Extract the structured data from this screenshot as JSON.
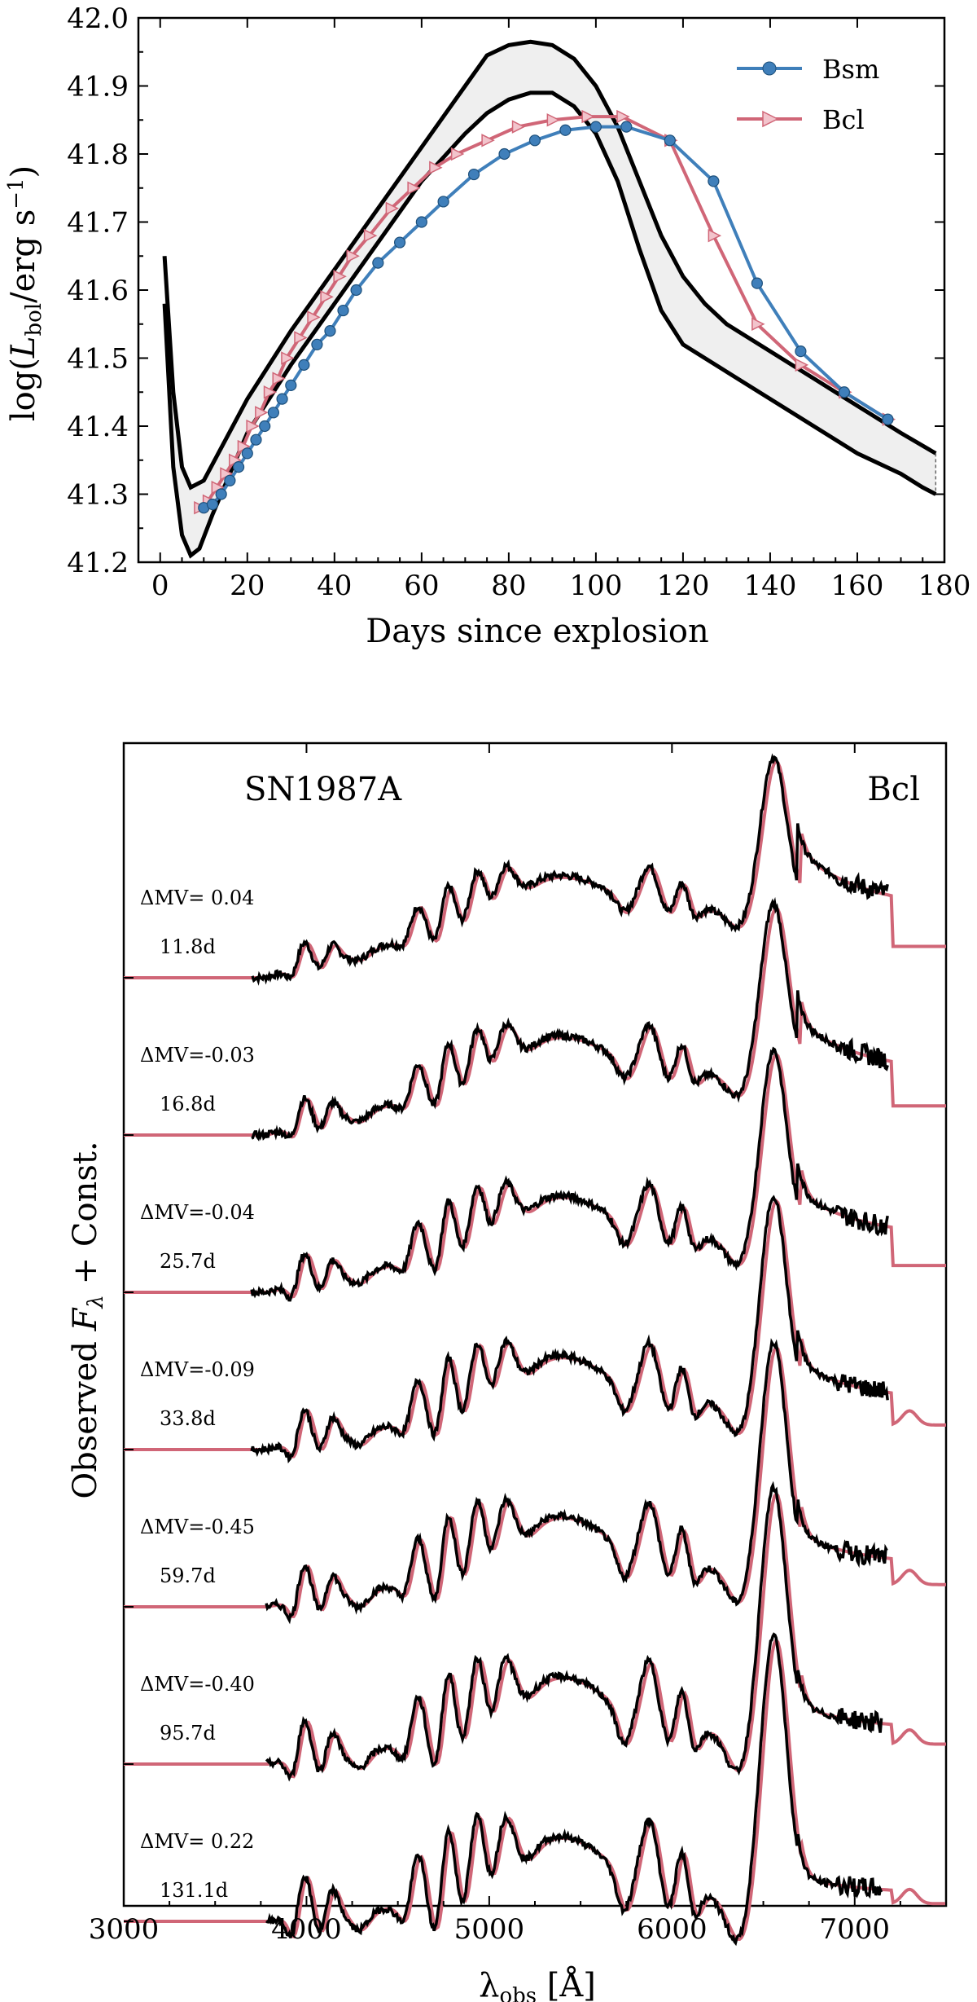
{
  "colors": {
    "bsm": "#3f7fba",
    "bcl": "#d06677",
    "band_fill": "#efefef",
    "data": "#000000"
  },
  "chart_data": [
    {
      "type": "line",
      "title": "",
      "xlabel": "Days since explosion",
      "ylabel": "log(L_bol / erg s^-1)",
      "xlim": [
        -5,
        180
      ],
      "ylim": [
        41.2,
        42.0
      ],
      "xticks": [
        "0",
        "20",
        "40",
        "60",
        "80",
        "100",
        "120",
        "140",
        "160",
        "180"
      ],
      "yticks": [
        "41.2",
        "41.3",
        "41.4",
        "41.5",
        "41.6",
        "41.7",
        "41.8",
        "41.9",
        "42.0"
      ],
      "legend_position": "top-right",
      "series": [
        {
          "name": "Bsm",
          "marker": "circle",
          "x": [
            10,
            12,
            14,
            16,
            18,
            20,
            22,
            24,
            26,
            28,
            30,
            33,
            36,
            39,
            42,
            45,
            50,
            55,
            60,
            65,
            72,
            79,
            86,
            93,
            100,
            107,
            117,
            127,
            137,
            147,
            157,
            167
          ],
          "y": [
            41.28,
            41.285,
            41.3,
            41.32,
            41.34,
            41.36,
            41.38,
            41.4,
            41.42,
            41.44,
            41.46,
            41.49,
            41.52,
            41.54,
            41.57,
            41.6,
            41.64,
            41.67,
            41.7,
            41.73,
            41.77,
            41.8,
            41.82,
            41.835,
            41.84,
            41.84,
            41.82,
            41.76,
            41.61,
            41.51,
            41.45,
            41.41
          ]
        },
        {
          "name": "Bcl",
          "marker": "triangle-right",
          "x": [
            9,
            11,
            13,
            15,
            17,
            19,
            21,
            23,
            25,
            27,
            29,
            32,
            35,
            38,
            41,
            44,
            48,
            53,
            58,
            63,
            68,
            75,
            82,
            90,
            98,
            106,
            117,
            127,
            137,
            147,
            157,
            167
          ],
          "y": [
            41.28,
            41.29,
            41.31,
            41.33,
            41.35,
            41.37,
            41.4,
            41.42,
            41.45,
            41.47,
            41.5,
            41.53,
            41.56,
            41.59,
            41.62,
            41.65,
            41.68,
            41.72,
            41.75,
            41.78,
            41.8,
            41.82,
            41.84,
            41.85,
            41.855,
            41.855,
            41.82,
            41.68,
            41.55,
            41.49,
            41.45,
            41.41
          ]
        },
        {
          "name": "SN1987A upper bound",
          "x": [
            1,
            3,
            5,
            7,
            10,
            15,
            20,
            30,
            40,
            50,
            60,
            70,
            75,
            80,
            85,
            90,
            95,
            100,
            105,
            110,
            115,
            120,
            125,
            130,
            140,
            150,
            160,
            170,
            178
          ],
          "y": [
            41.65,
            41.45,
            41.34,
            41.31,
            41.32,
            41.38,
            41.44,
            41.54,
            41.63,
            41.72,
            41.81,
            41.9,
            41.945,
            41.96,
            41.965,
            41.96,
            41.94,
            41.9,
            41.84,
            41.76,
            41.68,
            41.62,
            41.58,
            41.55,
            41.51,
            41.47,
            41.43,
            41.39,
            41.36
          ]
        },
        {
          "name": "SN1987A lower bound",
          "x": [
            1,
            3,
            5,
            7,
            9,
            12,
            16,
            20,
            30,
            40,
            50,
            60,
            70,
            75,
            80,
            85,
            90,
            95,
            100,
            105,
            110,
            115,
            120,
            125,
            130,
            140,
            150,
            160,
            170,
            175,
            178
          ],
          "y": [
            41.58,
            41.34,
            41.24,
            41.21,
            41.22,
            41.27,
            41.33,
            41.39,
            41.49,
            41.58,
            41.67,
            41.76,
            41.83,
            41.86,
            41.88,
            41.89,
            41.89,
            41.87,
            41.83,
            41.76,
            41.66,
            41.57,
            41.52,
            41.5,
            41.48,
            41.44,
            41.4,
            41.36,
            41.33,
            41.31,
            41.3
          ]
        }
      ]
    },
    {
      "type": "line",
      "title": "SN1987A",
      "model_label": "Bcl",
      "xlabel": "λobs [Å]",
      "ylabel": "Observed Fλ + Const.",
      "xlim": [
        3000,
        7500
      ],
      "xticks": [
        "3000",
        "4000",
        "5000",
        "6000",
        "7000"
      ],
      "epochs": [
        {
          "delta_mv": "ΔMV= 0.04",
          "day": "11.8d"
        },
        {
          "delta_mv": "ΔMV=-0.03",
          "day": "16.8d"
        },
        {
          "delta_mv": "ΔMV=-0.04",
          "day": "25.7d"
        },
        {
          "delta_mv": "ΔMV=-0.09",
          "day": "33.8d"
        },
        {
          "delta_mv": "ΔMV=-0.45",
          "day": "59.7d"
        },
        {
          "delta_mv": "ΔMV=-0.40",
          "day": "95.7d"
        },
        {
          "delta_mv": "ΔMV= 0.22",
          "day": "131.1d"
        }
      ]
    }
  ]
}
